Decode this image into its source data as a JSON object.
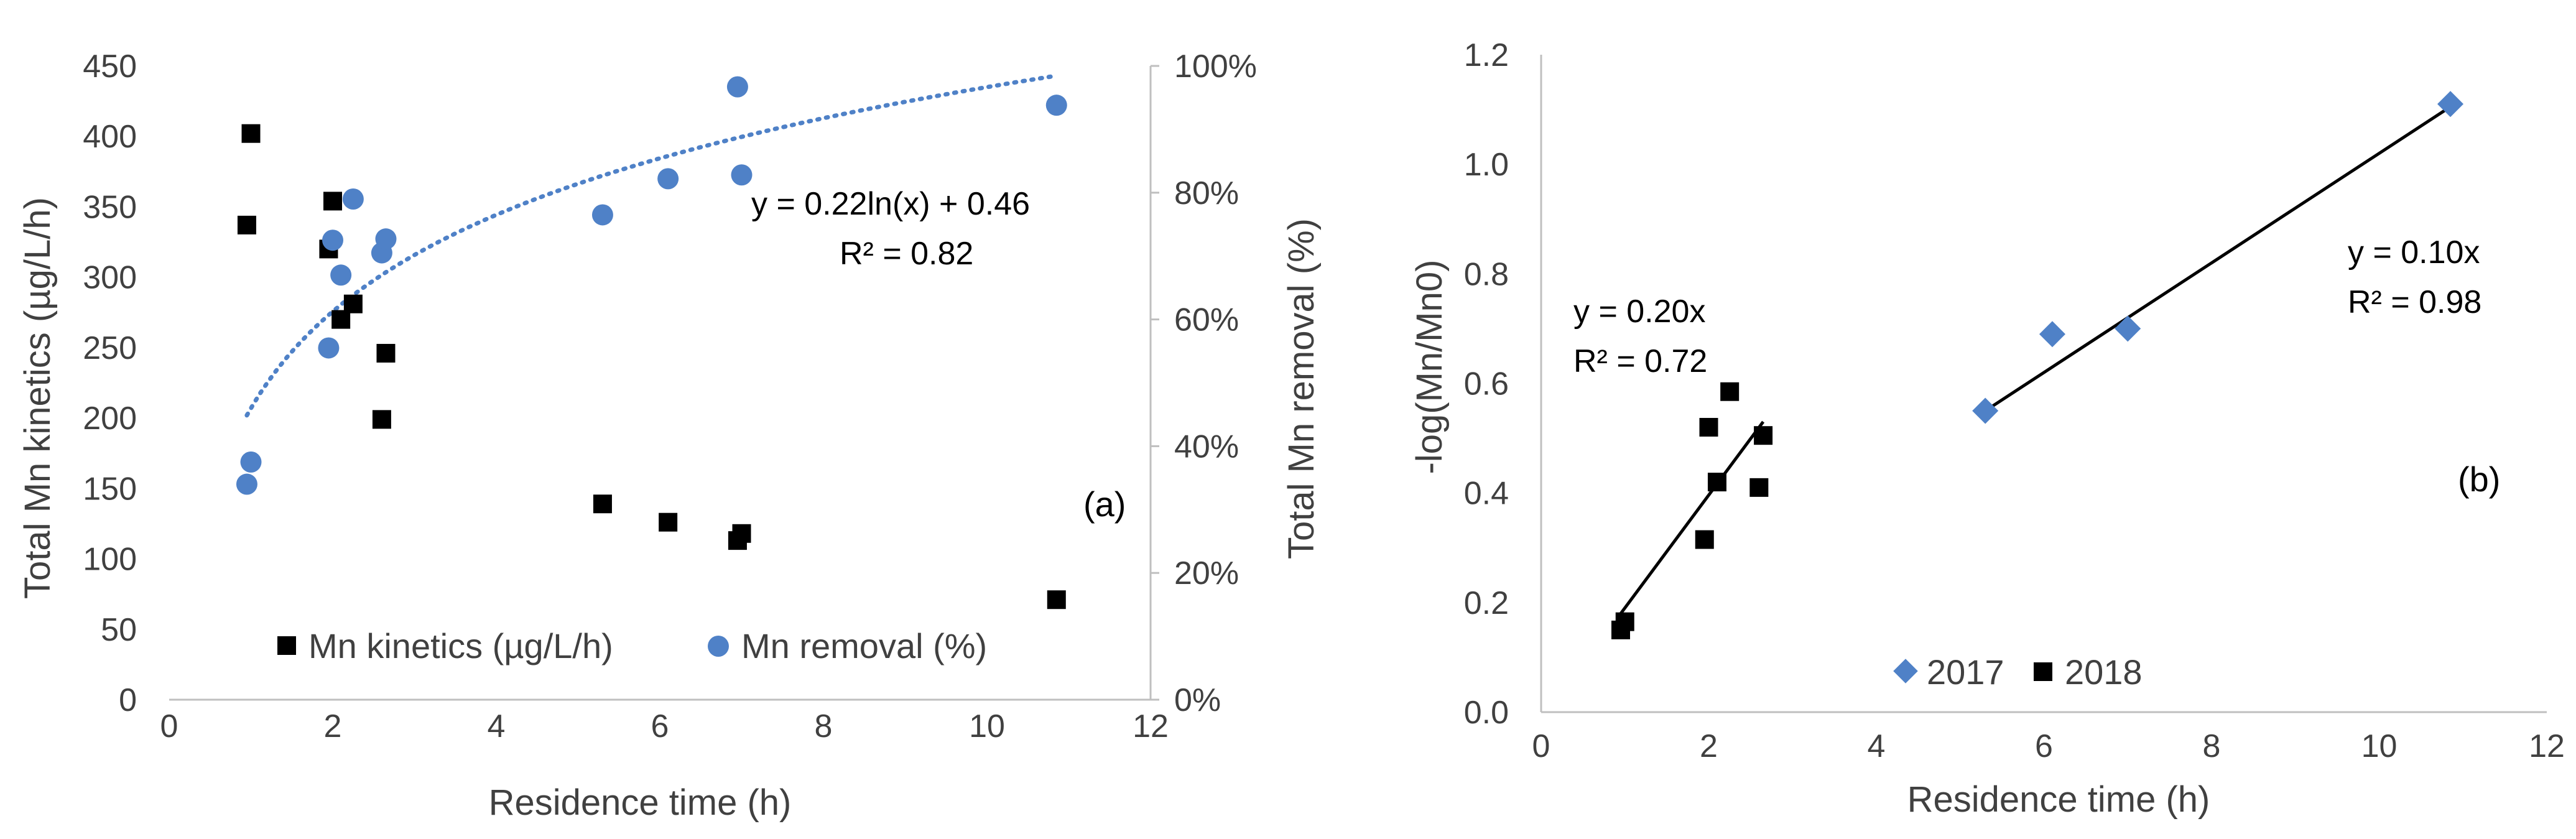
{
  "figure": {
    "panel_a_label": "(a)",
    "panel_b_label": "(b)"
  },
  "chart_data": [
    {
      "type": "scatter",
      "panel": "(a)",
      "xlabel": "Residence time (h)",
      "ylabel": "Total Mn kinetics  (µg/L/h)",
      "y2label": "Total Mn removal (%)",
      "xlim": [
        0,
        12
      ],
      "ylim": [
        0,
        450
      ],
      "y2lim": [
        0,
        1
      ],
      "x_ticks": [
        0,
        2,
        4,
        6,
        8,
        10,
        12
      ],
      "y_ticks": [
        0,
        50,
        100,
        150,
        200,
        250,
        300,
        350,
        400,
        450
      ],
      "y2_ticks": [
        "0%",
        "20%",
        "40%",
        "60%",
        "80%",
        "100%"
      ],
      "legend_position": "bottom",
      "series": [
        {
          "name": "Mn kinetics (µg/L/h)",
          "axis": "left",
          "marker": "square",
          "color": "#000000",
          "points": [
            [
              0.95,
              337
            ],
            [
              1.0,
              402
            ],
            [
              1.95,
              320
            ],
            [
              2.0,
              354
            ],
            [
              2.1,
              270
            ],
            [
              2.25,
              281
            ],
            [
              2.6,
              199
            ],
            [
              2.65,
              246
            ],
            [
              5.3,
              139
            ],
            [
              6.1,
              126
            ],
            [
              6.95,
              113
            ],
            [
              7.0,
              118
            ],
            [
              10.85,
              71
            ]
          ]
        },
        {
          "name": "Mn removal (%)",
          "axis": "right",
          "marker": "circle",
          "color": "#4f81c7",
          "points": [
            [
              0.95,
              0.34
            ],
            [
              1.0,
              0.375
            ],
            [
              1.95,
              0.555
            ],
            [
              2.0,
              0.725
            ],
            [
              2.1,
              0.67
            ],
            [
              2.25,
              0.79
            ],
            [
              2.6,
              0.705
            ],
            [
              2.65,
              0.727
            ],
            [
              5.3,
              0.765
            ],
            [
              6.1,
              0.822
            ],
            [
              6.95,
              0.967
            ],
            [
              7.0,
              0.828
            ],
            [
              10.85,
              0.938
            ]
          ]
        }
      ],
      "trendline": {
        "series": "Mn removal (%)",
        "type": "log",
        "a": 0.22,
        "b": 0.46,
        "x_range": [
          0.95,
          10.85
        ],
        "equation": "y = 0.22ln(x) + 0.46",
        "r2": "R² = 0.82"
      }
    },
    {
      "type": "scatter",
      "panel": "(b)",
      "xlabel": "Residence time (h)",
      "ylabel": "-log(Mn/Mn0)",
      "xlim": [
        0,
        12
      ],
      "ylim": [
        0,
        1.2
      ],
      "x_ticks": [
        0,
        2,
        4,
        6,
        8,
        10,
        12
      ],
      "y_ticks": [
        "0.0",
        "0.2",
        "0.4",
        "0.6",
        "0.8",
        "1.0",
        "1.2"
      ],
      "legend_position": "bottom",
      "series": [
        {
          "name": "2017",
          "marker": "diamond",
          "color": "#4f81c7",
          "points": [
            [
              5.3,
              0.55
            ],
            [
              6.1,
              0.69
            ],
            [
              7.0,
              0.7
            ],
            [
              10.85,
              1.11
            ]
          ]
        },
        {
          "name": "2018",
          "marker": "square",
          "color": "#000000",
          "points": [
            [
              0.95,
              0.15
            ],
            [
              1.0,
              0.165
            ],
            [
              1.95,
              0.315
            ],
            [
              2.0,
              0.52
            ],
            [
              2.1,
              0.42
            ],
            [
              2.25,
              0.585
            ],
            [
              2.6,
              0.41
            ],
            [
              2.65,
              0.505
            ]
          ]
        }
      ],
      "trendlines": [
        {
          "series": "2018",
          "slope": 0.2,
          "x_range": [
            0.95,
            2.65
          ],
          "fit_note": "drawn fit",
          "equation": "y = 0.20x",
          "r2": "R² = 0.72"
        },
        {
          "series": "2017",
          "slope": 0.1,
          "x_range": [
            5.3,
            10.85
          ],
          "fit_note": "drawn fit",
          "equation": "y = 0.10x",
          "r2": "R² = 0.98"
        }
      ]
    }
  ]
}
